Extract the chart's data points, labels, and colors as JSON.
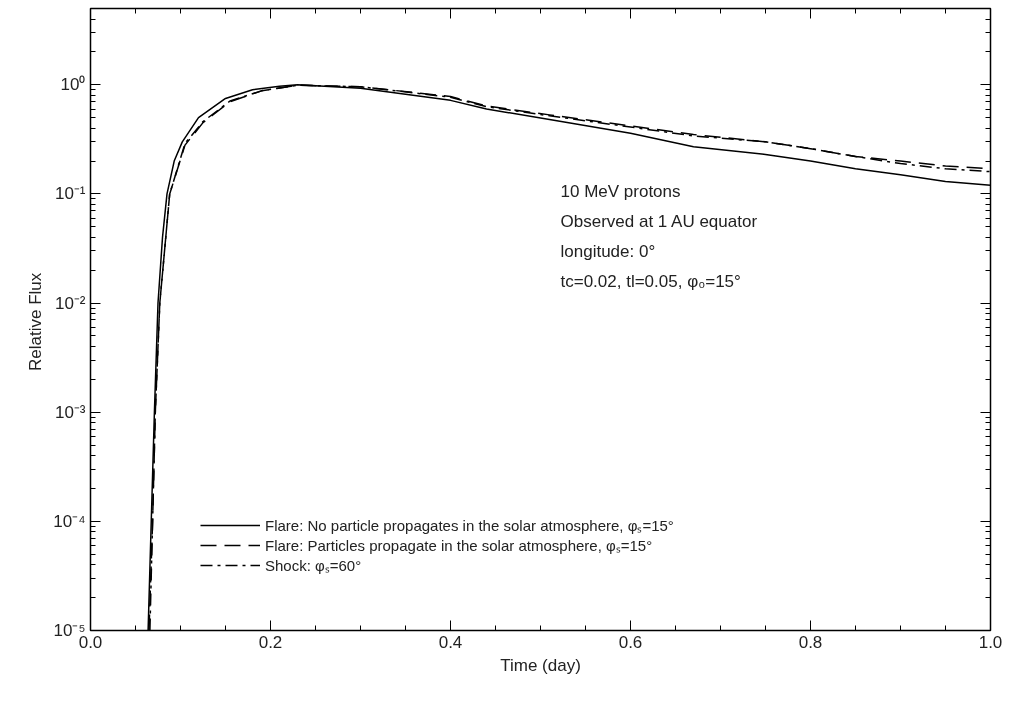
{
  "chart_data": {
    "type": "line",
    "xlabel": "Time (day)",
    "ylabel": "Relative  Flux",
    "log": "y",
    "xlim": [
      0,
      1
    ],
    "ylim": [
      1e-05,
      5
    ],
    "xticks": [
      {
        "value": 0,
        "label": "0.0"
      },
      {
        "value": 0.2,
        "label": "0.2"
      },
      {
        "value": 0.4,
        "label": "0.4"
      },
      {
        "value": 0.6,
        "label": "0.6"
      },
      {
        "value": 0.8,
        "label": "0.8"
      },
      {
        "value": 1,
        "label": "1.0"
      }
    ],
    "yticks": [
      {
        "value": 1e-05,
        "label": "10⁻⁵"
      },
      {
        "value": 0.0001,
        "label": "10⁻⁴"
      },
      {
        "value": 0.001,
        "label": "10⁻³"
      },
      {
        "value": 0.01,
        "label": "10⁻²"
      },
      {
        "value": 0.1,
        "label": "10⁻¹"
      },
      {
        "value": 1,
        "label": "10⁰"
      }
    ],
    "grid": false,
    "legend": "bottom left",
    "annotations": [
      "10 MeV protons",
      "Observed at 1 AU equator",
      "longitude: 0°",
      "tc=0.02, tl=0.05, φ₀=15°"
    ],
    "series": [
      {
        "name": "Flare: No particle propagates in the solar atmosphere, φₛ=15°",
        "color": "#000000",
        "line_style": "solid",
        "x": [
          0.064,
          0.0675,
          0.071,
          0.075,
          0.08,
          0.085,
          0.093,
          0.102,
          0.12,
          0.15,
          0.18,
          0.21,
          0.23,
          0.3,
          0.4,
          0.44,
          0.51,
          0.6,
          0.67,
          0.75,
          0.8,
          0.85,
          0.9,
          0.95,
          1.0
        ],
        "values": [
          1e-05,
          0.0001,
          0.001,
          0.01,
          0.04,
          0.1,
          0.2,
          0.3,
          0.5,
          0.75,
          0.9,
          0.97,
          1.0,
          0.93,
          0.72,
          0.6,
          0.48,
          0.36,
          0.27,
          0.23,
          0.2,
          0.17,
          0.15,
          0.13,
          0.12
        ]
      },
      {
        "name": "Flare: Particles propagate in the solar atmosphere, φₛ=15°",
        "color": "#000000",
        "line_style": "dashed",
        "x": [
          0.065,
          0.069,
          0.072,
          0.077,
          0.088,
          0.105,
          0.125,
          0.155,
          0.19,
          0.23,
          0.3,
          0.4,
          0.44,
          0.51,
          0.6,
          0.67,
          0.75,
          0.8,
          0.85,
          0.9,
          0.95,
          1.0
        ],
        "values": [
          1e-05,
          0.0001,
          0.001,
          0.01,
          0.1,
          0.28,
          0.45,
          0.7,
          0.88,
          0.99,
          0.96,
          0.78,
          0.64,
          0.53,
          0.42,
          0.35,
          0.3,
          0.26,
          0.22,
          0.2,
          0.18,
          0.17
        ]
      },
      {
        "name": "Shock: φₛ=60°",
        "color": "#000000",
        "line_style": "dashdot",
        "x": [
          0.066,
          0.069,
          0.072,
          0.077,
          0.088,
          0.105,
          0.125,
          0.155,
          0.19,
          0.23,
          0.3,
          0.4,
          0.44,
          0.51,
          0.6,
          0.67,
          0.75,
          0.8,
          0.85,
          0.9,
          0.95,
          1.0
        ],
        "values": [
          1e-05,
          0.0001,
          0.001,
          0.01,
          0.1,
          0.29,
          0.46,
          0.71,
          0.88,
          0.99,
          0.96,
          0.77,
          0.63,
          0.52,
          0.41,
          0.34,
          0.3,
          0.26,
          0.22,
          0.19,
          0.17,
          0.16
        ]
      }
    ]
  }
}
